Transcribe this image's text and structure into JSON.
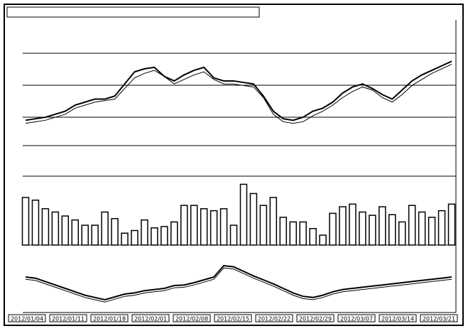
{
  "chart_data": [
    {
      "type": "line",
      "ylim": [
        0,
        100
      ],
      "series": [
        {
          "color": "#000000",
          "values": [
            36,
            37,
            38,
            40,
            42,
            46,
            48,
            50,
            50,
            52,
            60,
            68,
            70,
            71,
            65,
            62,
            66,
            69,
            71,
            64,
            62,
            62,
            61,
            60,
            52,
            42,
            37,
            36,
            38,
            42,
            44,
            48,
            54,
            58,
            60,
            57,
            53,
            50,
            56,
            62,
            66,
            69,
            72,
            75
          ]
        },
        {
          "color": "#000000",
          "values": [
            34,
            35,
            36,
            38,
            40,
            44,
            46,
            48,
            49,
            50,
            57,
            64,
            67,
            69,
            65,
            60,
            63,
            66,
            68,
            63,
            60,
            60,
            59,
            58,
            51,
            40,
            35,
            34,
            35,
            39,
            42,
            46,
            51,
            55,
            58,
            56,
            51,
            48,
            53,
            59,
            63,
            67,
            70,
            73
          ]
        }
      ]
    },
    {
      "type": "bar",
      "ylim": [
        0,
        100
      ],
      "color": "#ffffff",
      "values": [
        72,
        68,
        55,
        50,
        44,
        38,
        30,
        30,
        50,
        40,
        18,
        22,
        38,
        26,
        28,
        35,
        60,
        60,
        55,
        52,
        55,
        30,
        92,
        78,
        60,
        72,
        42,
        35,
        35,
        25,
        15,
        48,
        58,
        62,
        50,
        45,
        58,
        46,
        35,
        60,
        50,
        42,
        52,
        62
      ]
    },
    {
      "type": "line",
      "ylim": [
        0,
        100
      ],
      "series": [
        {
          "color": "#000000",
          "values": [
            60,
            58,
            52,
            46,
            40,
            34,
            28,
            24,
            20,
            25,
            30,
            32,
            36,
            38,
            40,
            45,
            46,
            50,
            55,
            60,
            80,
            78,
            70,
            62,
            55,
            48,
            40,
            32,
            26,
            24,
            28,
            34,
            38,
            40,
            42,
            44,
            46,
            48,
            50,
            52,
            54,
            56,
            58,
            60
          ]
        },
        {
          "color": "#000000",
          "values": [
            56,
            54,
            48,
            42,
            36,
            30,
            24,
            20,
            16,
            21,
            26,
            28,
            32,
            34,
            36,
            41,
            42,
            46,
            51,
            56,
            76,
            74,
            66,
            58,
            51,
            44,
            36,
            28,
            22,
            20,
            24,
            30,
            34,
            36,
            38,
            40,
            42,
            44,
            46,
            48,
            50,
            52,
            54,
            56
          ]
        }
      ]
    }
  ],
  "dates": [
    "2012/01/04",
    "2012/01/11",
    "2012/01/18",
    "2012/02/01",
    "2012/02/08",
    "2012/02/15",
    "2012/02/22",
    "2012/02/29",
    "2012/03/07",
    "2012/03/14",
    "2012/03/21"
  ]
}
